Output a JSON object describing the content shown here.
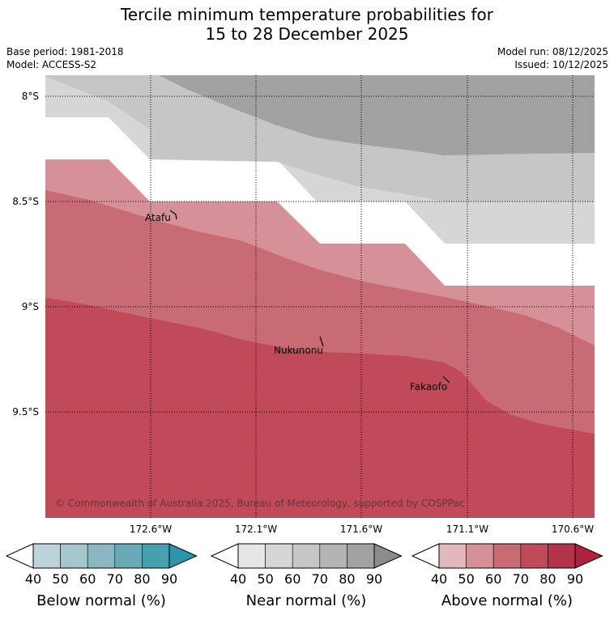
{
  "title_line1": "Tercile minimum temperature probabilities for",
  "title_line2": "15 to 28 December 2025",
  "base_period": "Base period: 1981-2018",
  "model": "Model: ACCESS-S2",
  "model_run": "Model run: 08/12/2025",
  "issued": "Issued: 10/12/2025",
  "lat_labels": [
    "8°S",
    "8.5°S",
    "9°S",
    "9.5°S"
  ],
  "lon_labels": [
    "172.6°W",
    "172.1°W",
    "171.6°W",
    "171.1°W",
    "170.6°W"
  ],
  "places": {
    "atafu": "Atafu",
    "nukunonu": "Nukunonu",
    "fakaofo": "Fakaofo"
  },
  "copyright": "© Commonwealth of Australia 2025, Bureau of Meteorology, supported by COSPPac",
  "colorbars": [
    {
      "title": "Below normal (%)",
      "ticks": [
        "40",
        "50",
        "60",
        "70",
        "80",
        "90"
      ],
      "colors": [
        "#bdd3da",
        "#a6c6cd",
        "#8ab8c2",
        "#6aaab7",
        "#47a0b0",
        "#2b96a9"
      ]
    },
    {
      "title": "Near normal (%)",
      "ticks": [
        "40",
        "50",
        "60",
        "70",
        "80",
        "90"
      ],
      "colors": [
        "#e6e6e6",
        "#d6d6d6",
        "#c6c6c6",
        "#b4b4b4",
        "#a2a2a2",
        "#8c8c8c"
      ]
    },
    {
      "title": "Above normal (%)",
      "ticks": [
        "40",
        "50",
        "60",
        "70",
        "80",
        "90"
      ],
      "colors": [
        "#e2b8bd",
        "#d59197",
        "#c96b74",
        "#c04a57",
        "#b3334a",
        "#b1203f"
      ]
    }
  ],
  "colors": {
    "near_40_50": "#d6d6d6",
    "near_50_60": "#c6c6c6",
    "near_60_70": "#a2a2a2",
    "above_50_60": "#d59197",
    "above_60_70": "#c96b74",
    "above_70_80": "#c04a57"
  }
}
